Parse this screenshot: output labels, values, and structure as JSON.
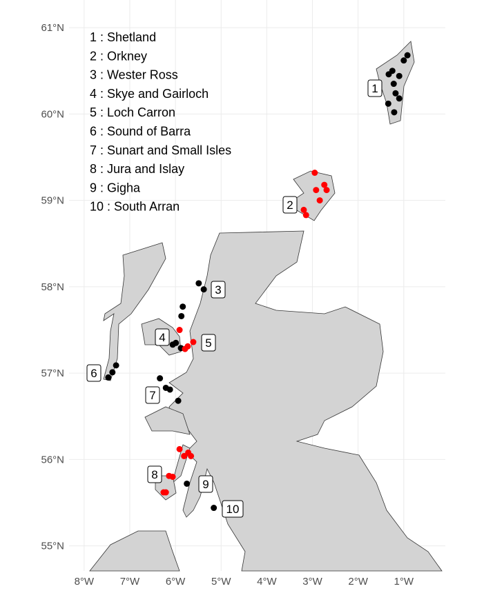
{
  "map": {
    "xlim": [
      -8.33,
      -0.09
    ],
    "ylim": [
      54.71,
      61.32
    ],
    "xticks": [
      {
        "value": -8,
        "label": "8°W"
      },
      {
        "value": -7,
        "label": "7°W"
      },
      {
        "value": -6,
        "label": "6°W"
      },
      {
        "value": -5,
        "label": "5°W"
      },
      {
        "value": -4,
        "label": "4°W"
      },
      {
        "value": -3,
        "label": "3°W"
      },
      {
        "value": -2,
        "label": "2°W"
      },
      {
        "value": -1,
        "label": "1°W"
      }
    ],
    "yticks": [
      {
        "value": 55,
        "label": "55°N"
      },
      {
        "value": 56,
        "label": "56°N"
      },
      {
        "value": 57,
        "label": "57°N"
      },
      {
        "value": 58,
        "label": "58°N"
      },
      {
        "value": 59,
        "label": "59°N"
      },
      {
        "value": 60,
        "label": "60°N"
      },
      {
        "value": 61,
        "label": "61°N"
      }
    ],
    "legend": [
      "1 : Shetland",
      "2 : Orkney",
      "3 : Wester Ross",
      "4 : Skye and Gairloch",
      "5 : Loch Carron",
      "6 : Sound of Barra",
      "7 : Sunart and Small Isles",
      "8 : Jura and Islay",
      "9 : Gigha",
      "10 : South Arran"
    ],
    "region_labels": [
      "1",
      "2",
      "3",
      "4",
      "5",
      "6",
      "7",
      "8",
      "9",
      "10"
    ],
    "points": [
      {
        "lon": -0.92,
        "lat": 60.68,
        "color": "#000000"
      },
      {
        "lon": -1.0,
        "lat": 60.62,
        "color": "#000000"
      },
      {
        "lon": -1.25,
        "lat": 60.5,
        "color": "#000000"
      },
      {
        "lon": -1.33,
        "lat": 60.46,
        "color": "#000000"
      },
      {
        "lon": -1.1,
        "lat": 60.44,
        "color": "#000000"
      },
      {
        "lon": -1.22,
        "lat": 60.35,
        "color": "#000000"
      },
      {
        "lon": -1.18,
        "lat": 60.24,
        "color": "#000000"
      },
      {
        "lon": -1.1,
        "lat": 60.18,
        "color": "#000000"
      },
      {
        "lon": -1.34,
        "lat": 60.12,
        "color": "#000000"
      },
      {
        "lon": -1.21,
        "lat": 60.02,
        "color": "#000000"
      },
      {
        "lon": -2.95,
        "lat": 59.32,
        "color": "#ff0000"
      },
      {
        "lon": -2.92,
        "lat": 59.12,
        "color": "#ff0000"
      },
      {
        "lon": -2.74,
        "lat": 59.18,
        "color": "#ff0000"
      },
      {
        "lon": -2.69,
        "lat": 59.12,
        "color": "#ff0000"
      },
      {
        "lon": -2.84,
        "lat": 59.0,
        "color": "#ff0000"
      },
      {
        "lon": -3.19,
        "lat": 58.89,
        "color": "#ff0000"
      },
      {
        "lon": -3.14,
        "lat": 58.83,
        "color": "#ff0000"
      },
      {
        "lon": -5.49,
        "lat": 58.04,
        "color": "#000000"
      },
      {
        "lon": -5.38,
        "lat": 57.97,
        "color": "#000000"
      },
      {
        "lon": -5.84,
        "lat": 57.77,
        "color": "#000000"
      },
      {
        "lon": -5.87,
        "lat": 57.66,
        "color": "#000000"
      },
      {
        "lon": -5.91,
        "lat": 57.5,
        "color": "#ff0000"
      },
      {
        "lon": -6.06,
        "lat": 57.33,
        "color": "#000000"
      },
      {
        "lon": -5.99,
        "lat": 57.35,
        "color": "#000000"
      },
      {
        "lon": -5.88,
        "lat": 57.29,
        "color": "#000000"
      },
      {
        "lon": -5.73,
        "lat": 57.31,
        "color": "#ff0000"
      },
      {
        "lon": -5.61,
        "lat": 57.36,
        "color": "#ff0000"
      },
      {
        "lon": -5.79,
        "lat": 57.28,
        "color": "#ff0000"
      },
      {
        "lon": -7.47,
        "lat": 56.95,
        "color": "#000000"
      },
      {
        "lon": -7.38,
        "lat": 57.01,
        "color": "#000000"
      },
      {
        "lon": -7.3,
        "lat": 57.09,
        "color": "#000000"
      },
      {
        "lon": -6.34,
        "lat": 56.94,
        "color": "#000000"
      },
      {
        "lon": -6.21,
        "lat": 56.83,
        "color": "#000000"
      },
      {
        "lon": -6.12,
        "lat": 56.81,
        "color": "#000000"
      },
      {
        "lon": -5.94,
        "lat": 56.68,
        "color": "#000000"
      },
      {
        "lon": -5.91,
        "lat": 56.12,
        "color": "#ff0000"
      },
      {
        "lon": -5.81,
        "lat": 56.04,
        "color": "#ff0000"
      },
      {
        "lon": -5.72,
        "lat": 56.08,
        "color": "#ff0000"
      },
      {
        "lon": -5.66,
        "lat": 56.04,
        "color": "#ff0000"
      },
      {
        "lon": -6.14,
        "lat": 55.81,
        "color": "#ff0000"
      },
      {
        "lon": -6.06,
        "lat": 55.8,
        "color": "#ff0000"
      },
      {
        "lon": -6.21,
        "lat": 55.62,
        "color": "#ff0000"
      },
      {
        "lon": -6.26,
        "lat": 55.62,
        "color": "#ff0000"
      },
      {
        "lon": -5.75,
        "lat": 55.72,
        "color": "#000000"
      },
      {
        "lon": -5.16,
        "lat": 55.44,
        "color": "#000000"
      }
    ]
  }
}
